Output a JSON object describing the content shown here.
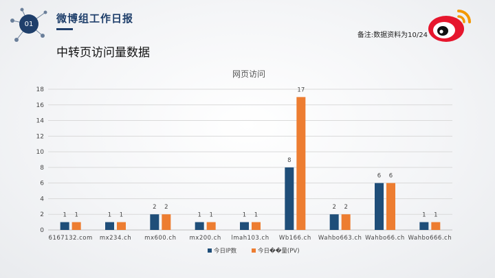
{
  "header": {
    "badge": "01",
    "app_title": "微博组工作日报",
    "note": "备注:数据资料为10/24",
    "section_title": "中转页访问量数据"
  },
  "colors": {
    "series_ip": "#1f4e79",
    "series_pv": "#ed7d31",
    "brand_red": "#e6162d",
    "brand_orange": "#f39800"
  },
  "icons": [
    "network-nodes-icon",
    "weibo-logo-icon"
  ],
  "chart_data": {
    "type": "bar",
    "title": "网页访问",
    "categories": [
      "6167132.com",
      "mx234.ch",
      "mx600.ch",
      "mx200.ch",
      "lmah103.ch",
      "Wb166.ch",
      "Wahbo663.ch",
      "Wahbo66.ch",
      "Wahbo666.ch"
    ],
    "series": [
      {
        "name": "今日IP数",
        "color": "#1f4e79",
        "values": [
          1,
          1,
          2,
          1,
          1,
          8,
          2,
          6,
          1
        ]
      },
      {
        "name": "今日��量(PV)",
        "color": "#ed7d31",
        "values": [
          1,
          1,
          2,
          1,
          1,
          17,
          2,
          6,
          1
        ]
      }
    ],
    "y_ticks": [
      "0",
      "2",
      "4",
      "6",
      "8",
      "10",
      "12",
      "14",
      "16",
      "18"
    ],
    "ylim": [
      0,
      18
    ],
    "grid": true,
    "legend": "bottom-center"
  }
}
